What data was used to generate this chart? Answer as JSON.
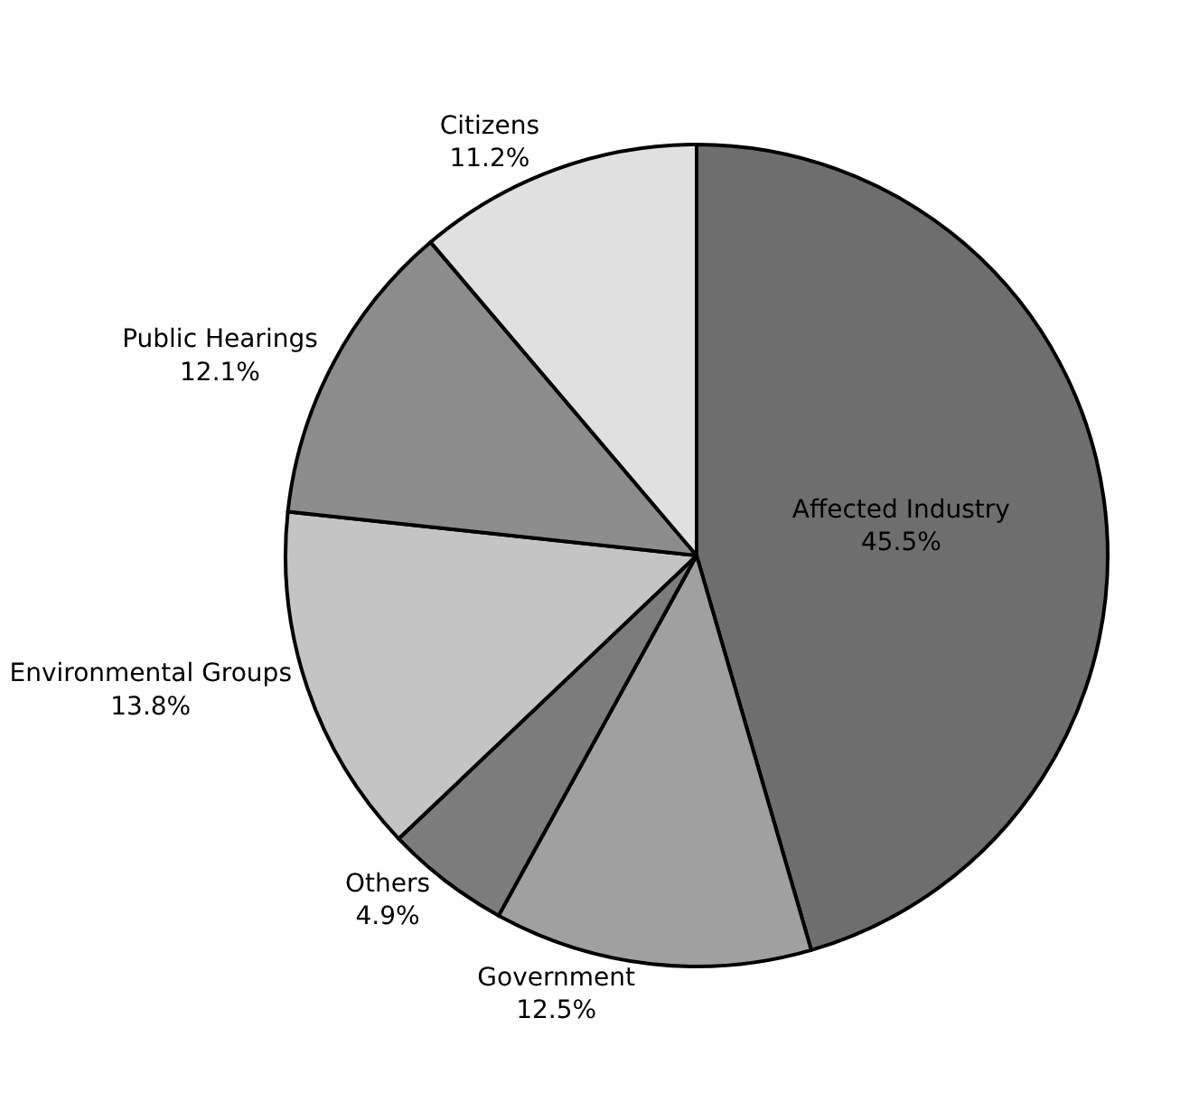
{
  "chart_data": {
    "type": "pie",
    "categories": [
      "Affected Industry",
      "Government",
      "Others",
      "Environmental Groups",
      "Public Hearings",
      "Citizens"
    ],
    "values": [
      45.5,
      12.5,
      4.9,
      13.8,
      12.1,
      11.2
    ],
    "value_labels": [
      "45.5%",
      "12.5%",
      "4.9%",
      "13.8%",
      "12.1%",
      "11.2%"
    ],
    "colors": [
      "#6e6e6e",
      "#a0a0a0",
      "#7c7c7c",
      "#c4c4c4",
      "#8c8c8c",
      "#e0e0e0"
    ],
    "legend": false
  }
}
